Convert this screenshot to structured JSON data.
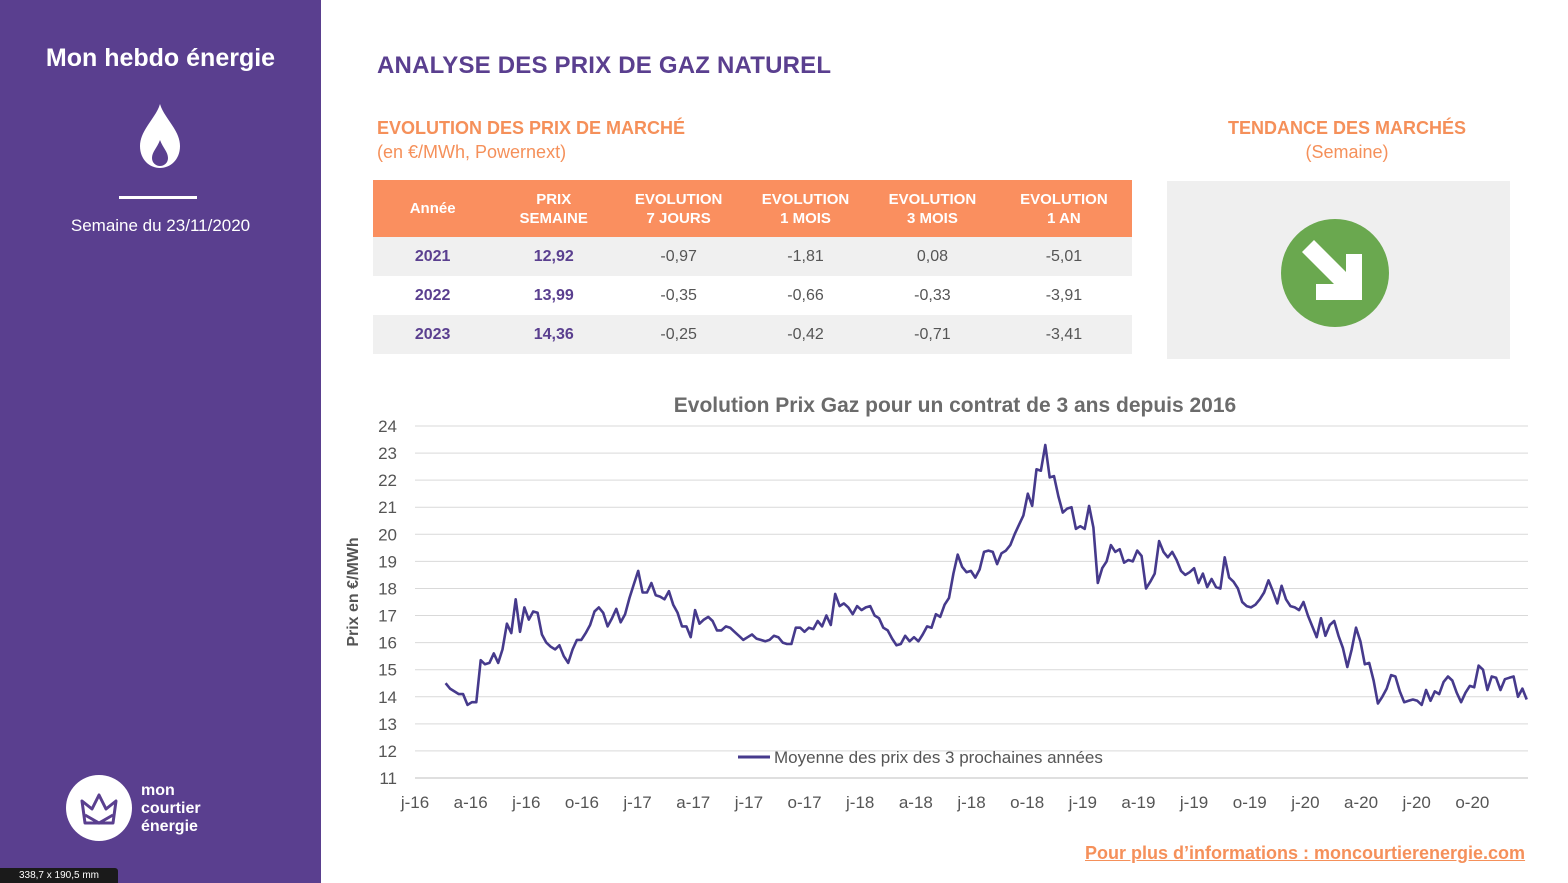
{
  "sidebar": {
    "title": "Mon hebdo énergie",
    "week": "Semaine du 23/11/2020",
    "logo": {
      "line1": "mon",
      "line2": "courtier",
      "line3": "énergie"
    },
    "icon": "flame-icon",
    "bg_color": "#5a3f8f"
  },
  "dimension_tag": "338,7 x 190,5 mm",
  "header": {
    "title": "ANALYSE DES PRIX DE GAZ NATUREL",
    "subtitle": "EVOLUTION DES PRIX DE MARCHÉ",
    "unit": "(en €/MWh, Powernext)"
  },
  "trend": {
    "title": "TENDANCE DES MARCHÉS",
    "unit": "(Semaine)",
    "direction": "down",
    "icon": "arrow-down-right-icon",
    "color": "#6aa84f"
  },
  "table": {
    "headers": [
      [
        "Année"
      ],
      [
        "PRIX",
        "SEMAINE"
      ],
      [
        "EVOLUTION",
        "7 JOURS"
      ],
      [
        "EVOLUTION",
        "1 MOIS"
      ],
      [
        "EVOLUTION",
        "3 MOIS"
      ],
      [
        "EVOLUTION",
        "1 AN"
      ]
    ],
    "rows": [
      [
        "2021",
        "12,92",
        "-0,97",
        "-1,81",
        "0,08",
        "-5,01"
      ],
      [
        "2022",
        "13,99",
        "-0,35",
        "-0,66",
        "-0,33",
        "-3,91"
      ],
      [
        "2023",
        "14,36",
        "-0,25",
        "-0,42",
        "-0,71",
        "-3,41"
      ]
    ]
  },
  "footer": {
    "link_text": "Pour plus d’informations : moncourtierenergie.com"
  },
  "chart_data": {
    "type": "line",
    "title": "Evolution Prix Gaz pour un contrat de 3 ans depuis 2016",
    "xlabel": "",
    "ylabel": "Prix en €/MWh",
    "ylim": [
      11,
      24
    ],
    "yticks": [
      11,
      12,
      13,
      14,
      15,
      16,
      17,
      18,
      19,
      20,
      21,
      22,
      23,
      24
    ],
    "xticks": [
      "j-16",
      "a-16",
      "j-16",
      "o-16",
      "j-17",
      "a-17",
      "j-17",
      "o-17",
      "j-18",
      "a-18",
      "j-18",
      "o-18",
      "j-19",
      "a-19",
      "j-19",
      "o-19",
      "j-20",
      "a-20",
      "j-20",
      "o-20"
    ],
    "xlim": [
      0,
      1780
    ],
    "grid": "horizontal",
    "legend": "bottom",
    "line_color": "#463a8c",
    "series": [
      {
        "name": "Moyenne des prix des 3 prochaines années",
        "points": [
          [
            49,
            14.5
          ],
          [
            56,
            14.3
          ],
          [
            63,
            14.2
          ],
          [
            70,
            14.1
          ],
          [
            77,
            14.1
          ],
          [
            84,
            13.7
          ],
          [
            91,
            13.8
          ],
          [
            98,
            13.8
          ],
          [
            105,
            15.35
          ],
          [
            112,
            15.2
          ],
          [
            119,
            15.25
          ],
          [
            126,
            15.6
          ],
          [
            133,
            15.25
          ],
          [
            140,
            15.75
          ],
          [
            147,
            16.7
          ],
          [
            154,
            16.35
          ],
          [
            161,
            17.6
          ],
          [
            168,
            16.4
          ],
          [
            175,
            17.3
          ],
          [
            182,
            16.85
          ],
          [
            189,
            17.15
          ],
          [
            196,
            17.1
          ],
          [
            203,
            16.3
          ],
          [
            210,
            16.0
          ],
          [
            217,
            15.85
          ],
          [
            224,
            15.75
          ],
          [
            231,
            15.9
          ],
          [
            238,
            15.5
          ],
          [
            245,
            15.25
          ],
          [
            252,
            15.75
          ],
          [
            259,
            16.1
          ],
          [
            266,
            16.1
          ],
          [
            273,
            16.35
          ],
          [
            280,
            16.65
          ],
          [
            287,
            17.15
          ],
          [
            294,
            17.3
          ],
          [
            301,
            17.1
          ],
          [
            308,
            16.6
          ],
          [
            315,
            16.9
          ],
          [
            322,
            17.25
          ],
          [
            329,
            16.75
          ],
          [
            336,
            17.05
          ],
          [
            343,
            17.65
          ],
          [
            350,
            18.15
          ],
          [
            357,
            18.65
          ],
          [
            364,
            17.85
          ],
          [
            371,
            17.85
          ],
          [
            378,
            18.2
          ],
          [
            385,
            17.75
          ],
          [
            392,
            17.7
          ],
          [
            399,
            17.6
          ],
          [
            406,
            17.9
          ],
          [
            413,
            17.4
          ],
          [
            420,
            17.1
          ],
          [
            427,
            16.6
          ],
          [
            434,
            16.6
          ],
          [
            441,
            16.2
          ],
          [
            448,
            17.2
          ],
          [
            455,
            16.7
          ],
          [
            462,
            16.85
          ],
          [
            469,
            16.95
          ],
          [
            476,
            16.8
          ],
          [
            483,
            16.45
          ],
          [
            490,
            16.45
          ],
          [
            497,
            16.6
          ],
          [
            504,
            16.55
          ],
          [
            511,
            16.4
          ],
          [
            518,
            16.25
          ],
          [
            525,
            16.1
          ],
          [
            532,
            16.2
          ],
          [
            539,
            16.3
          ],
          [
            546,
            16.15
          ],
          [
            553,
            16.1
          ],
          [
            560,
            16.05
          ],
          [
            567,
            16.1
          ],
          [
            574,
            16.25
          ],
          [
            581,
            16.2
          ],
          [
            588,
            16.0
          ],
          [
            595,
            15.95
          ],
          [
            602,
            15.95
          ],
          [
            609,
            16.55
          ],
          [
            616,
            16.55
          ],
          [
            623,
            16.4
          ],
          [
            630,
            16.55
          ],
          [
            637,
            16.5
          ],
          [
            644,
            16.8
          ],
          [
            651,
            16.6
          ],
          [
            658,
            17.0
          ],
          [
            665,
            16.65
          ],
          [
            672,
            17.8
          ],
          [
            679,
            17.35
          ],
          [
            686,
            17.45
          ],
          [
            693,
            17.3
          ],
          [
            700,
            17.05
          ],
          [
            707,
            17.35
          ],
          [
            714,
            17.2
          ],
          [
            721,
            17.3
          ],
          [
            728,
            17.35
          ],
          [
            735,
            17.0
          ],
          [
            742,
            16.9
          ],
          [
            749,
            16.55
          ],
          [
            756,
            16.45
          ],
          [
            763,
            16.15
          ],
          [
            770,
            15.9
          ],
          [
            777,
            15.95
          ],
          [
            784,
            16.25
          ],
          [
            791,
            16.05
          ],
          [
            798,
            16.2
          ],
          [
            805,
            16.05
          ],
          [
            812,
            16.3
          ],
          [
            819,
            16.6
          ],
          [
            826,
            16.55
          ],
          [
            833,
            17.05
          ],
          [
            840,
            16.95
          ],
          [
            847,
            17.4
          ],
          [
            854,
            17.65
          ],
          [
            861,
            18.55
          ],
          [
            868,
            19.25
          ],
          [
            875,
            18.8
          ],
          [
            882,
            18.6
          ],
          [
            889,
            18.65
          ],
          [
            896,
            18.4
          ],
          [
            903,
            18.7
          ],
          [
            910,
            19.35
          ],
          [
            917,
            19.4
          ],
          [
            924,
            19.35
          ],
          [
            931,
            18.9
          ],
          [
            938,
            19.3
          ],
          [
            945,
            19.4
          ],
          [
            952,
            19.6
          ],
          [
            959,
            20.0
          ],
          [
            966,
            20.35
          ],
          [
            973,
            20.7
          ],
          [
            980,
            21.5
          ],
          [
            987,
            21.05
          ],
          [
            994,
            22.4
          ],
          [
            1001,
            22.35
          ],
          [
            1008,
            23.3
          ],
          [
            1015,
            22.1
          ],
          [
            1022,
            22.15
          ],
          [
            1029,
            21.4
          ],
          [
            1036,
            20.8
          ],
          [
            1043,
            20.95
          ],
          [
            1050,
            21.0
          ],
          [
            1057,
            20.2
          ],
          [
            1064,
            20.3
          ],
          [
            1071,
            20.2
          ],
          [
            1078,
            21.05
          ],
          [
            1085,
            20.25
          ],
          [
            1092,
            18.2
          ],
          [
            1099,
            18.75
          ],
          [
            1106,
            19.0
          ],
          [
            1113,
            19.6
          ],
          [
            1120,
            19.35
          ],
          [
            1127,
            19.45
          ],
          [
            1134,
            18.95
          ],
          [
            1141,
            19.05
          ],
          [
            1148,
            19.0
          ],
          [
            1155,
            19.4
          ],
          [
            1162,
            19.2
          ],
          [
            1169,
            18.0
          ],
          [
            1176,
            18.25
          ],
          [
            1183,
            18.55
          ],
          [
            1190,
            19.75
          ],
          [
            1197,
            19.35
          ],
          [
            1204,
            19.15
          ],
          [
            1211,
            19.35
          ],
          [
            1218,
            19.05
          ],
          [
            1225,
            18.65
          ],
          [
            1232,
            18.5
          ],
          [
            1239,
            18.6
          ],
          [
            1246,
            18.75
          ],
          [
            1253,
            18.2
          ],
          [
            1260,
            18.55
          ],
          [
            1267,
            18.05
          ],
          [
            1274,
            18.35
          ],
          [
            1281,
            18.05
          ],
          [
            1288,
            18.0
          ],
          [
            1295,
            19.15
          ],
          [
            1302,
            18.4
          ],
          [
            1309,
            18.25
          ],
          [
            1316,
            18.0
          ],
          [
            1323,
            17.5
          ],
          [
            1330,
            17.35
          ],
          [
            1337,
            17.3
          ],
          [
            1344,
            17.4
          ],
          [
            1351,
            17.6
          ],
          [
            1358,
            17.85
          ],
          [
            1365,
            18.3
          ],
          [
            1372,
            17.9
          ],
          [
            1379,
            17.45
          ],
          [
            1386,
            18.1
          ],
          [
            1393,
            17.6
          ],
          [
            1400,
            17.35
          ],
          [
            1407,
            17.3
          ],
          [
            1414,
            17.2
          ],
          [
            1421,
            17.5
          ],
          [
            1428,
            17.0
          ],
          [
            1435,
            16.6
          ],
          [
            1442,
            16.2
          ],
          [
            1449,
            16.9
          ],
          [
            1456,
            16.25
          ],
          [
            1463,
            16.65
          ],
          [
            1470,
            16.8
          ],
          [
            1477,
            16.25
          ],
          [
            1484,
            15.8
          ],
          [
            1491,
            15.1
          ],
          [
            1498,
            15.75
          ],
          [
            1505,
            16.55
          ],
          [
            1512,
            16.05
          ],
          [
            1519,
            15.2
          ],
          [
            1526,
            15.25
          ],
          [
            1533,
            14.6
          ],
          [
            1540,
            13.75
          ],
          [
            1547,
            14.0
          ],
          [
            1554,
            14.3
          ],
          [
            1561,
            14.8
          ],
          [
            1568,
            14.75
          ],
          [
            1575,
            14.2
          ],
          [
            1582,
            13.8
          ],
          [
            1589,
            13.85
          ],
          [
            1596,
            13.9
          ],
          [
            1603,
            13.85
          ],
          [
            1610,
            13.7
          ],
          [
            1617,
            14.25
          ],
          [
            1624,
            13.85
          ],
          [
            1631,
            14.2
          ],
          [
            1638,
            14.1
          ],
          [
            1645,
            14.55
          ],
          [
            1652,
            14.75
          ],
          [
            1659,
            14.6
          ],
          [
            1666,
            14.15
          ],
          [
            1673,
            13.8
          ],
          [
            1680,
            14.15
          ],
          [
            1687,
            14.4
          ],
          [
            1694,
            14.35
          ],
          [
            1701,
            15.15
          ],
          [
            1708,
            15.0
          ],
          [
            1715,
            14.25
          ],
          [
            1722,
            14.75
          ],
          [
            1729,
            14.7
          ],
          [
            1736,
            14.25
          ],
          [
            1743,
            14.65
          ],
          [
            1750,
            14.7
          ],
          [
            1757,
            14.75
          ],
          [
            1764,
            14.0
          ],
          [
            1771,
            14.3
          ],
          [
            1778,
            13.9
          ]
        ]
      }
    ]
  }
}
